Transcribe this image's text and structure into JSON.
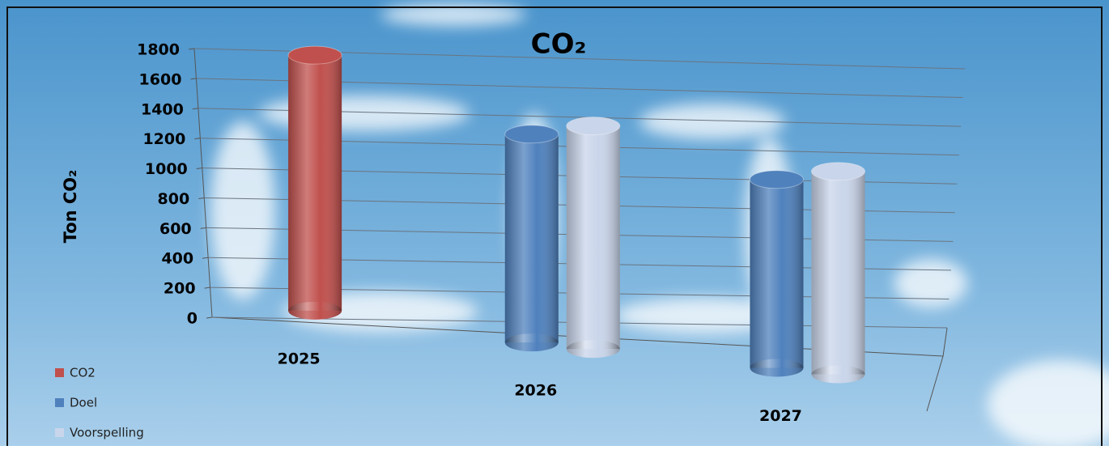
{
  "chart_data": {
    "type": "bar3d",
    "title": "CO₂",
    "y_label": "Ton CO₂",
    "categories": [
      "2025",
      "2026",
      "2027"
    ],
    "series": [
      {
        "name": "CO2",
        "color": "#c0504d",
        "values": [
          1720,
          null,
          null
        ]
      },
      {
        "name": "Doel",
        "color": "#4f81bd",
        "values": [
          null,
          1420,
          1300
        ]
      },
      {
        "name": "Voorspelling",
        "color": "#c9d5ea",
        "values": [
          null,
          1520,
          1400
        ]
      }
    ],
    "ylim": [
      0,
      1800
    ],
    "yticks": [
      0,
      200,
      400,
      600,
      800,
      1000,
      1200,
      1400,
      1600,
      1800
    ],
    "grid": true,
    "legend": "bottom-left"
  }
}
